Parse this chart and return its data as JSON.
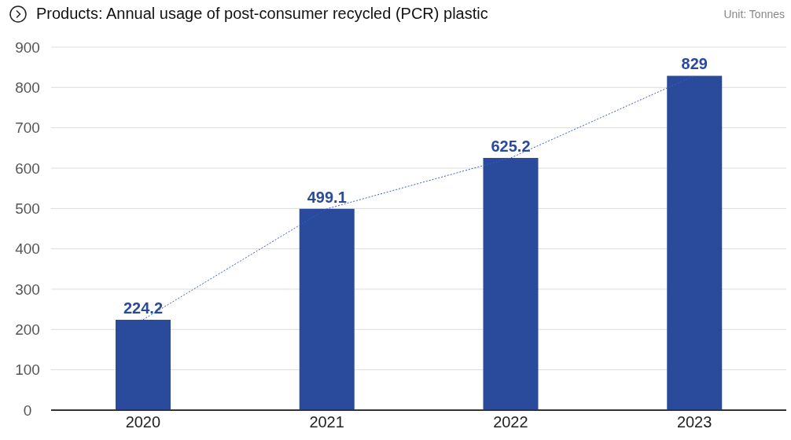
{
  "chart_data": {
    "type": "bar",
    "title": "Products: Annual usage of post-consumer recycled (PCR) plastic",
    "annotations": [
      "Unit: Tonnes"
    ],
    "categories": [
      "2020",
      "2021",
      "2022",
      "2023"
    ],
    "series": [
      {
        "type": "line",
        "color": "#3a5bd9",
        "values": [
          224.2,
          499.1,
          625.2,
          829
        ]
      },
      {
        "color": "#2a4a9c",
        "values": [
          224.2,
          499.1,
          625.2,
          829
        ],
        "value_labels": [
          "224.2",
          "499.1",
          "625.2",
          "829"
        ]
      }
    ],
    "line_style": "dotted",
    "ylim": [
      0,
      900
    ],
    "yticks": [
      0,
      100,
      200,
      300,
      400,
      500,
      600,
      700,
      800,
      900
    ],
    "grid": "y"
  }
}
